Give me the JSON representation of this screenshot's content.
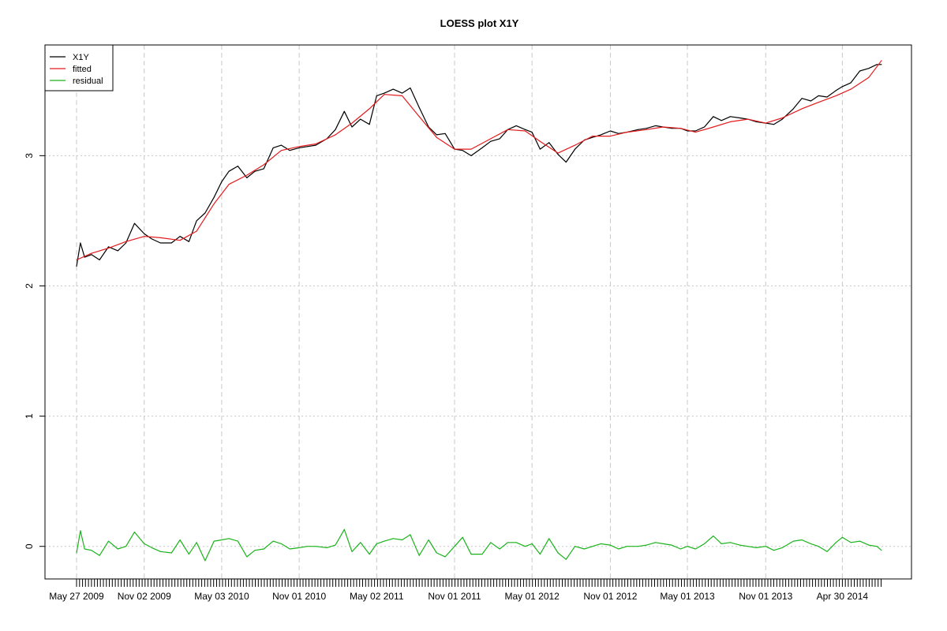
{
  "chart_data": {
    "type": "line",
    "title": "LOESS plot X1Y",
    "xlabel": "",
    "ylabel": "",
    "x_range": [
      "2009-05-27",
      "2014-07-31"
    ],
    "ylim": [
      -0.25,
      3.85
    ],
    "y_ticks": [
      0,
      1,
      2,
      3
    ],
    "x_tick_labels": [
      "May 27 2009",
      "Nov 02 2009",
      "May 03 2010",
      "Nov 01 2010",
      "May 02 2011",
      "Nov 01 2011",
      "May 01 2012",
      "Nov 01 2012",
      "May 01 2013",
      "Nov 01 2013",
      "Apr 30 2014"
    ],
    "x_tick_dates": [
      "2009-05-27",
      "2009-11-02",
      "2010-05-03",
      "2010-11-01",
      "2011-05-02",
      "2011-11-01",
      "2012-05-01",
      "2012-11-01",
      "2013-05-01",
      "2013-11-01",
      "2014-04-30"
    ],
    "grid": true,
    "legend_position": "top-left",
    "series": [
      {
        "name": "X1Y",
        "color": "#000000",
        "x": [
          "2009-05-27",
          "2009-06-05",
          "2009-06-15",
          "2009-07-01",
          "2009-07-20",
          "2009-08-10",
          "2009-09-01",
          "2009-09-20",
          "2009-10-10",
          "2009-11-02",
          "2009-11-20",
          "2009-12-10",
          "2010-01-05",
          "2010-01-25",
          "2010-02-15",
          "2010-03-05",
          "2010-03-25",
          "2010-04-15",
          "2010-05-03",
          "2010-05-20",
          "2010-06-10",
          "2010-07-01",
          "2010-07-20",
          "2010-08-10",
          "2010-09-01",
          "2010-09-20",
          "2010-10-10",
          "2010-11-01",
          "2010-11-20",
          "2010-12-10",
          "2011-01-05",
          "2011-01-25",
          "2011-02-15",
          "2011-03-05",
          "2011-03-25",
          "2011-04-15",
          "2011-05-02",
          "2011-05-20",
          "2011-06-10",
          "2011-07-01",
          "2011-07-20",
          "2011-08-10",
          "2011-09-01",
          "2011-09-20",
          "2011-10-10",
          "2011-11-01",
          "2011-11-20",
          "2011-12-10",
          "2012-01-05",
          "2012-01-25",
          "2012-02-15",
          "2012-03-05",
          "2012-03-25",
          "2012-04-15",
          "2012-05-01",
          "2012-05-20",
          "2012-06-10",
          "2012-07-01",
          "2012-07-20",
          "2012-08-10",
          "2012-09-01",
          "2012-09-20",
          "2012-10-10",
          "2012-11-01",
          "2012-11-20",
          "2012-12-10",
          "2013-01-05",
          "2013-01-25",
          "2013-02-15",
          "2013-03-05",
          "2013-03-25",
          "2013-04-15",
          "2013-05-01",
          "2013-05-20",
          "2013-06-10",
          "2013-07-01",
          "2013-07-20",
          "2013-08-10",
          "2013-09-01",
          "2013-09-20",
          "2013-10-10",
          "2013-11-01",
          "2013-11-20",
          "2013-12-10",
          "2014-01-05",
          "2014-01-25",
          "2014-02-15",
          "2014-03-05",
          "2014-03-25",
          "2014-04-15",
          "2014-04-30",
          "2014-05-20",
          "2014-06-10",
          "2014-07-01",
          "2014-07-20",
          "2014-07-31"
        ],
        "values": [
          2.15,
          2.33,
          2.22,
          2.24,
          2.2,
          2.3,
          2.27,
          2.33,
          2.48,
          2.4,
          2.36,
          2.33,
          2.33,
          2.38,
          2.34,
          2.5,
          2.56,
          2.68,
          2.8,
          2.88,
          2.92,
          2.83,
          2.88,
          2.9,
          3.06,
          3.08,
          3.04,
          3.06,
          3.07,
          3.08,
          3.13,
          3.2,
          3.34,
          3.22,
          3.28,
          3.24,
          3.46,
          3.48,
          3.51,
          3.48,
          3.52,
          3.37,
          3.22,
          3.16,
          3.17,
          3.05,
          3.04,
          3.0,
          3.06,
          3.11,
          3.13,
          3.2,
          3.23,
          3.2,
          3.18,
          3.05,
          3.1,
          3.01,
          2.95,
          3.05,
          3.12,
          3.14,
          3.16,
          3.19,
          3.17,
          3.18,
          3.2,
          3.21,
          3.23,
          3.22,
          3.21,
          3.21,
          3.19,
          3.19,
          3.22,
          3.3,
          3.27,
          3.3,
          3.29,
          3.28,
          3.26,
          3.25,
          3.24,
          3.28,
          3.36,
          3.44,
          3.42,
          3.46,
          3.45,
          3.5,
          3.53,
          3.56,
          3.65,
          3.67,
          3.7,
          3.7
        ]
      },
      {
        "name": "fitted",
        "color": "#e41a1c",
        "x": [
          "2009-05-27",
          "2009-07-01",
          "2009-08-10",
          "2009-09-20",
          "2009-11-02",
          "2009-12-10",
          "2010-01-25",
          "2010-03-05",
          "2010-04-15",
          "2010-05-20",
          "2010-07-01",
          "2010-08-10",
          "2010-09-20",
          "2010-11-01",
          "2010-12-10",
          "2011-01-25",
          "2011-03-05",
          "2011-04-15",
          "2011-05-20",
          "2011-07-01",
          "2011-08-10",
          "2011-09-20",
          "2011-11-01",
          "2011-12-10",
          "2012-01-25",
          "2012-03-05",
          "2012-04-15",
          "2012-05-20",
          "2012-07-01",
          "2012-08-10",
          "2012-09-20",
          "2012-11-01",
          "2012-12-10",
          "2013-01-25",
          "2013-03-05",
          "2013-04-15",
          "2013-05-20",
          "2013-07-01",
          "2013-08-10",
          "2013-09-20",
          "2013-11-01",
          "2013-12-10",
          "2014-01-25",
          "2014-03-05",
          "2014-04-15",
          "2014-05-20",
          "2014-07-01",
          "2014-07-31"
        ],
        "values": [
          2.2,
          2.25,
          2.29,
          2.34,
          2.38,
          2.37,
          2.35,
          2.42,
          2.63,
          2.78,
          2.85,
          2.93,
          3.04,
          3.07,
          3.09,
          3.16,
          3.25,
          3.36,
          3.47,
          3.46,
          3.3,
          3.14,
          3.05,
          3.05,
          3.13,
          3.2,
          3.19,
          3.11,
          3.02,
          3.08,
          3.15,
          3.15,
          3.18,
          3.2,
          3.22,
          3.21,
          3.18,
          3.22,
          3.26,
          3.28,
          3.25,
          3.29,
          3.36,
          3.41,
          3.46,
          3.51,
          3.6,
          3.73
        ]
      },
      {
        "name": "residual",
        "color": "#1bb31b",
        "x": [
          "2009-05-27",
          "2009-06-05",
          "2009-06-15",
          "2009-07-01",
          "2009-07-20",
          "2009-08-10",
          "2009-09-01",
          "2009-09-20",
          "2009-10-10",
          "2009-11-02",
          "2009-11-20",
          "2009-12-10",
          "2010-01-05",
          "2010-01-25",
          "2010-02-15",
          "2010-03-05",
          "2010-03-25",
          "2010-04-15",
          "2010-05-03",
          "2010-05-20",
          "2010-06-10",
          "2010-07-01",
          "2010-07-20",
          "2010-08-10",
          "2010-09-01",
          "2010-09-20",
          "2010-10-10",
          "2010-11-01",
          "2010-11-20",
          "2010-12-10",
          "2011-01-05",
          "2011-01-25",
          "2011-02-15",
          "2011-03-05",
          "2011-03-25",
          "2011-04-15",
          "2011-05-02",
          "2011-05-20",
          "2011-06-10",
          "2011-07-01",
          "2011-07-20",
          "2011-08-10",
          "2011-09-01",
          "2011-09-20",
          "2011-10-10",
          "2011-11-01",
          "2011-11-20",
          "2011-12-10",
          "2012-01-05",
          "2012-01-25",
          "2012-02-15",
          "2012-03-05",
          "2012-03-25",
          "2012-04-15",
          "2012-05-01",
          "2012-05-20",
          "2012-06-10",
          "2012-07-01",
          "2012-07-20",
          "2012-08-10",
          "2012-09-01",
          "2012-09-20",
          "2012-10-10",
          "2012-11-01",
          "2012-11-20",
          "2012-12-10",
          "2013-01-05",
          "2013-01-25",
          "2013-02-15",
          "2013-03-05",
          "2013-03-25",
          "2013-04-15",
          "2013-05-01",
          "2013-05-20",
          "2013-06-10",
          "2013-07-01",
          "2013-07-20",
          "2013-08-10",
          "2013-09-01",
          "2013-09-20",
          "2013-10-10",
          "2013-11-01",
          "2013-11-20",
          "2013-12-10",
          "2014-01-05",
          "2014-01-25",
          "2014-02-15",
          "2014-03-05",
          "2014-03-25",
          "2014-04-15",
          "2014-04-30",
          "2014-05-20",
          "2014-06-10",
          "2014-07-01",
          "2014-07-20",
          "2014-07-31"
        ],
        "values": [
          -0.05,
          0.12,
          -0.02,
          -0.03,
          -0.07,
          0.04,
          -0.02,
          0.0,
          0.11,
          0.02,
          -0.01,
          -0.04,
          -0.05,
          0.05,
          -0.06,
          0.03,
          -0.11,
          0.04,
          0.05,
          0.06,
          0.04,
          -0.08,
          -0.03,
          -0.02,
          0.04,
          0.02,
          -0.02,
          -0.01,
          0.0,
          0.0,
          -0.01,
          0.01,
          0.13,
          -0.04,
          0.03,
          -0.06,
          0.02,
          0.04,
          0.06,
          0.05,
          0.09,
          -0.07,
          0.05,
          -0.05,
          -0.08,
          0.0,
          0.07,
          -0.06,
          -0.06,
          0.03,
          -0.02,
          0.03,
          0.03,
          0.0,
          0.02,
          -0.06,
          0.06,
          -0.05,
          -0.1,
          0.0,
          -0.02,
          0.0,
          0.02,
          0.01,
          -0.02,
          0.0,
          0.0,
          0.01,
          0.03,
          0.02,
          0.01,
          -0.02,
          0.0,
          -0.02,
          0.02,
          0.08,
          0.02,
          0.03,
          0.01,
          0.0,
          -0.01,
          0.0,
          -0.03,
          -0.01,
          0.04,
          0.05,
          0.02,
          0.0,
          -0.04,
          0.03,
          0.07,
          0.03,
          0.04,
          0.01,
          0.0,
          -0.03
        ]
      }
    ]
  }
}
